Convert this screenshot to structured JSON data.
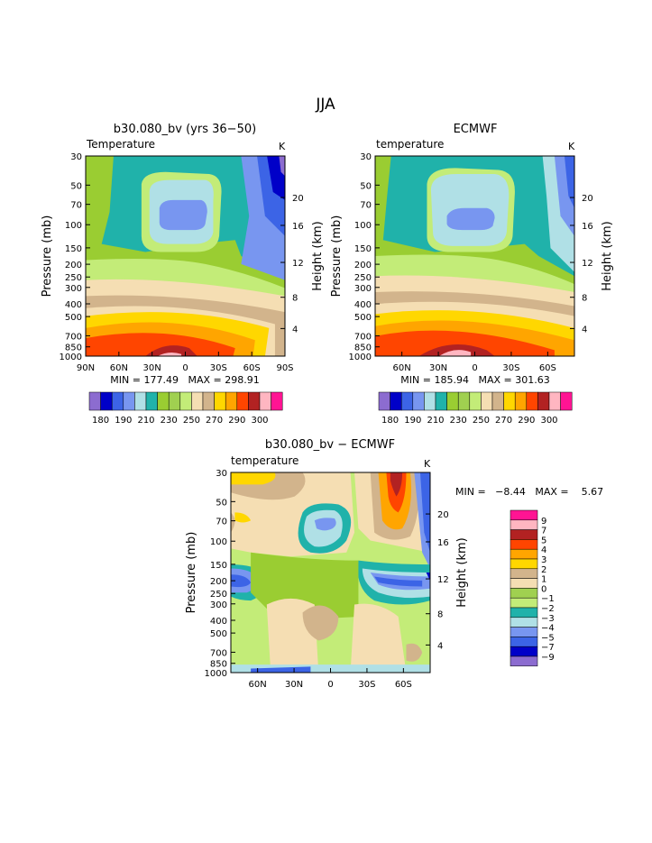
{
  "page_title": "JJA",
  "colors": [
    "#8c6cd0",
    "#0000c8",
    "#3c64e6",
    "#7896f0",
    "#b0e0e6",
    "#20b2aa",
    "#9acd32",
    "#a0d050",
    "#c3ec78",
    "#f5deb3",
    "#d2b48c",
    "#ffd700",
    "#ffa500",
    "#ff4500",
    "#b22222",
    "#ffb6c1",
    "#ff1493"
  ],
  "chart_data": [
    {
      "type": "heatmap",
      "title": "b30.080_bv (yrs 36−50)",
      "field_label": "Temperature",
      "units": "K",
      "ylabel": "Pressure (mb)",
      "ylabel_right": "Height (km)",
      "yticks": [
        "30",
        "50",
        "70",
        "100",
        "150",
        "200",
        "250",
        "300",
        "400",
        "500",
        "700",
        "850",
        "1000"
      ],
      "yticks_right": [
        "20",
        "16",
        "12",
        "8",
        "4"
      ],
      "xticks": [
        "90N",
        "60N",
        "30N",
        "0",
        "30S",
        "60S",
        "90S"
      ],
      "min_max_text": "MIN = 177.49   MAX = 298.91",
      "min": 177.49,
      "max": 298.91,
      "legend_labels": [
        "180",
        "190",
        "210",
        "230",
        "250",
        "270",
        "290",
        "300"
      ]
    },
    {
      "type": "heatmap",
      "title": "ECMWF",
      "field_label": "temperature",
      "units": "K",
      "ylabel": "Pressure (mb)",
      "ylabel_right": "Height (km)",
      "yticks": [
        "30",
        "50",
        "70",
        "100",
        "150",
        "200",
        "250",
        "300",
        "400",
        "500",
        "700",
        "850",
        "1000"
      ],
      "yticks_right": [
        "20",
        "16",
        "12",
        "8",
        "4"
      ],
      "xticks": [
        "60N",
        "30N",
        "0",
        "30S",
        "60S"
      ],
      "min_max_text": "MIN = 185.94   MAX = 301.63",
      "min": 185.94,
      "max": 301.63,
      "legend_labels": [
        "180",
        "190",
        "210",
        "230",
        "250",
        "270",
        "290",
        "300"
      ]
    },
    {
      "type": "heatmap",
      "title": "b30.080_bv − ECMWF",
      "field_label": "temperature",
      "units": "K",
      "ylabel": "Pressure (mb)",
      "ylabel_right": "Height (km)",
      "yticks": [
        "30",
        "50",
        "70",
        "100",
        "150",
        "200",
        "250",
        "300",
        "400",
        "500",
        "700",
        "850",
        "1000"
      ],
      "yticks_right": [
        "20",
        "16",
        "12",
        "8",
        "4"
      ],
      "xticks": [
        "60N",
        "30N",
        "0",
        "30S",
        "60S"
      ],
      "min_max_text": "MIN =   −8.44   MAX =    5.67",
      "min": -8.44,
      "max": 5.67,
      "legend_labels": [
        "9",
        "7",
        "5",
        "4",
        "3",
        "2",
        "1",
        "0",
        "−1",
        "−2",
        "−3",
        "−4",
        "−5",
        "−7",
        "−9"
      ],
      "legend_colors": [
        "#ff1493",
        "#ffb6c1",
        "#b22222",
        "#ff4500",
        "#ffa500",
        "#ffd700",
        "#d2b48c",
        "#f5deb3",
        "#a0d050",
        "#c3ec78",
        "#20b2aa",
        "#b0e0e6",
        "#7896f0",
        "#3c64e6",
        "#0000c8",
        "#8c6cd0"
      ]
    }
  ]
}
